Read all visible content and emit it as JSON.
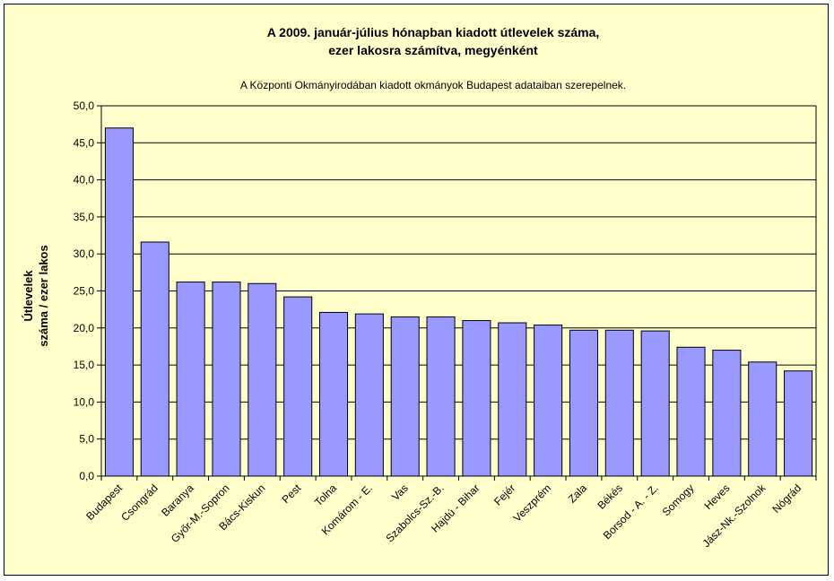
{
  "chart_data": {
    "type": "bar",
    "title": [
      "A 2009. január-július hónapban kiadott útlevelek száma,",
      "ezer lakosra számítva, megyénként"
    ],
    "subtitle": "A Központi Okmányirodában kiadott okmányok Budapest adataiban szerepelnek.",
    "ylabel": [
      "Útlevelek",
      "száma / ezer lakos"
    ],
    "xlabel": "",
    "ylim": [
      0,
      50
    ],
    "ytick_step": 5,
    "ytick_labels": [
      "0,0",
      "5,0",
      "10,0",
      "15,0",
      "20,0",
      "25,0",
      "30,0",
      "35,0",
      "40,0",
      "45,0",
      "50,0"
    ],
    "grid": true,
    "legend": "none",
    "categories": [
      "Budapest",
      "Csongrád",
      "Baranya",
      "Győr-M.-Sopron",
      "Bács-Kiskun",
      "Pest",
      "Tolna",
      "Komárom - E.",
      "Vas",
      "Szabolcs-Sz.-B.",
      "Hajdú - Bihar",
      "Fejér",
      "Veszprém",
      "Zala",
      "Békés",
      "Borsod - A. - Z.",
      "Somogy",
      "Heves",
      "Jász-Nk.-Szolnok",
      "Nógrád"
    ],
    "values": [
      47.0,
      31.6,
      26.2,
      26.2,
      26.0,
      24.2,
      22.1,
      21.9,
      21.5,
      21.5,
      21.0,
      20.7,
      20.4,
      19.7,
      19.7,
      19.6,
      17.4,
      17.0,
      15.4,
      14.2
    ],
    "colors": {
      "background": "#ffffcc",
      "plot_area": "#ffffcc",
      "bar_fill": "#9999ff",
      "bar_stroke": "#000000",
      "grid": "#000000"
    }
  }
}
